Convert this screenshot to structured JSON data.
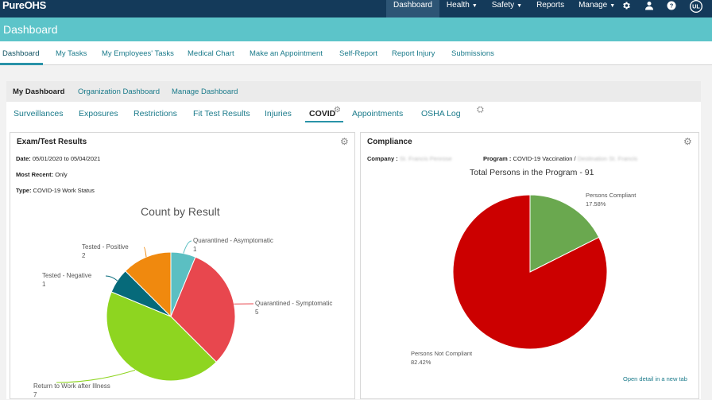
{
  "app": {
    "logo": "PureOHS"
  },
  "topnav": {
    "items": [
      {
        "label": "Dashboard",
        "caret": false
      },
      {
        "label": "Health",
        "caret": true
      },
      {
        "label": "Safety",
        "caret": true
      },
      {
        "label": "Reports",
        "caret": false
      },
      {
        "label": "Manage",
        "caret": true
      }
    ]
  },
  "page": {
    "title": "Dashboard"
  },
  "subnav": {
    "tabs": [
      "Dashboard",
      "My Tasks",
      "My Employees' Tasks",
      "Medical Chart",
      "Make an Appointment",
      "Self-Report",
      "Report Injury",
      "Submissions"
    ]
  },
  "dashboard_tabs": [
    "My Dashboard",
    "Organization Dashboard",
    "Manage Dashboard"
  ],
  "category_tabs": [
    "Surveillances",
    "Exposures",
    "Restrictions",
    "Fit Test Results",
    "Injuries",
    "COVID",
    "Appointments",
    "OSHA Log"
  ],
  "exam_card": {
    "title": "Exam/Test Results",
    "date_label": "Date:",
    "date_value": "05/01/2020 to 05/04/2021",
    "recent_label": "Most Recent:",
    "recent_value": "Only",
    "type_label": "Type:",
    "type_value": "COVID-19 Work Status"
  },
  "compliance_card": {
    "title": "Compliance",
    "company_label": "Company :",
    "company_value": "St. Francis Penrose",
    "program_label": "Program :",
    "program_value": "COVID-19 Vaccination /",
    "program_value_blurred": "Destination St. Francis",
    "link": "Open detail in a new tab"
  },
  "chart_data": [
    {
      "type": "pie",
      "title": "Count by Result",
      "slices": [
        {
          "label": "Quarantined - Asymptomatic",
          "value": 1,
          "color": "#5bbfc2"
        },
        {
          "label": "Quarantined - Symptomatic",
          "value": 5,
          "color": "#e8474e"
        },
        {
          "label": "Return to Work after Illness",
          "value": 7,
          "color": "#8ed520"
        },
        {
          "label": "Tested - Negative",
          "value": 1,
          "color": "#066a7a"
        },
        {
          "label": "Tested - Positive",
          "value": 2,
          "color": "#f0890e"
        }
      ]
    },
    {
      "type": "pie",
      "title": "Total Persons in the Program - 91",
      "slices": [
        {
          "label": "Persons Compliant",
          "value": 17.58,
          "display": "17.58%",
          "color": "#6aa84f"
        },
        {
          "label": "Persons Not Compliant",
          "value": 82.42,
          "display": "82.42%",
          "color": "#cc0000"
        }
      ]
    }
  ]
}
